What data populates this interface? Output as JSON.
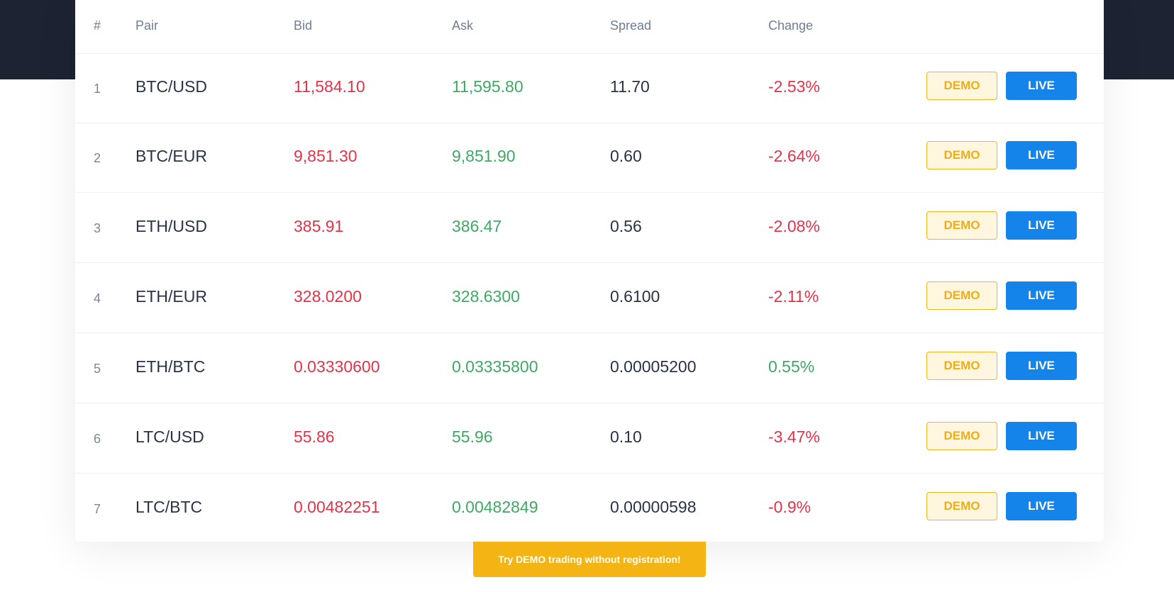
{
  "table": {
    "headers": {
      "num": "#",
      "pair": "Pair",
      "bid": "Bid",
      "ask": "Ask",
      "spread": "Spread",
      "change": "Change"
    },
    "rows": [
      {
        "num": "1",
        "pair": "BTC/USD",
        "bid": "11,584.10",
        "ask": "11,595.80",
        "spread": "11.70",
        "change": "-2.53%",
        "direction": "down"
      },
      {
        "num": "2",
        "pair": "BTC/EUR",
        "bid": "9,851.30",
        "ask": "9,851.90",
        "spread": "0.60",
        "change": "-2.64%",
        "direction": "down"
      },
      {
        "num": "3",
        "pair": "ETH/USD",
        "bid": "385.91",
        "ask": "386.47",
        "spread": "0.56",
        "change": "-2.08%",
        "direction": "down"
      },
      {
        "num": "4",
        "pair": "ETH/EUR",
        "bid": "328.0200",
        "ask": "328.6300",
        "spread": "0.6100",
        "change": "-2.11%",
        "direction": "down"
      },
      {
        "num": "5",
        "pair": "ETH/BTC",
        "bid": "0.03330600",
        "ask": "0.03335800",
        "spread": "0.00005200",
        "change": "0.55%",
        "direction": "up"
      },
      {
        "num": "6",
        "pair": "LTC/USD",
        "bid": "55.86",
        "ask": "55.96",
        "spread": "0.10",
        "change": "-3.47%",
        "direction": "down"
      },
      {
        "num": "7",
        "pair": "LTC/BTC",
        "bid": "0.00482251",
        "ask": "0.00482849",
        "spread": "0.00000598",
        "change": "-0.9%",
        "direction": "down"
      }
    ],
    "demo_label": "DEMO",
    "live_label": "LIVE"
  },
  "cta": {
    "label": "Try DEMO trading without registration!"
  },
  "colors": {
    "header_band": "#1d2333",
    "bid": "#e0344a",
    "ask": "#3fa865",
    "demo_accent": "#f3b61e",
    "live_accent": "#1484ea",
    "cta_background": "#f3b414"
  }
}
